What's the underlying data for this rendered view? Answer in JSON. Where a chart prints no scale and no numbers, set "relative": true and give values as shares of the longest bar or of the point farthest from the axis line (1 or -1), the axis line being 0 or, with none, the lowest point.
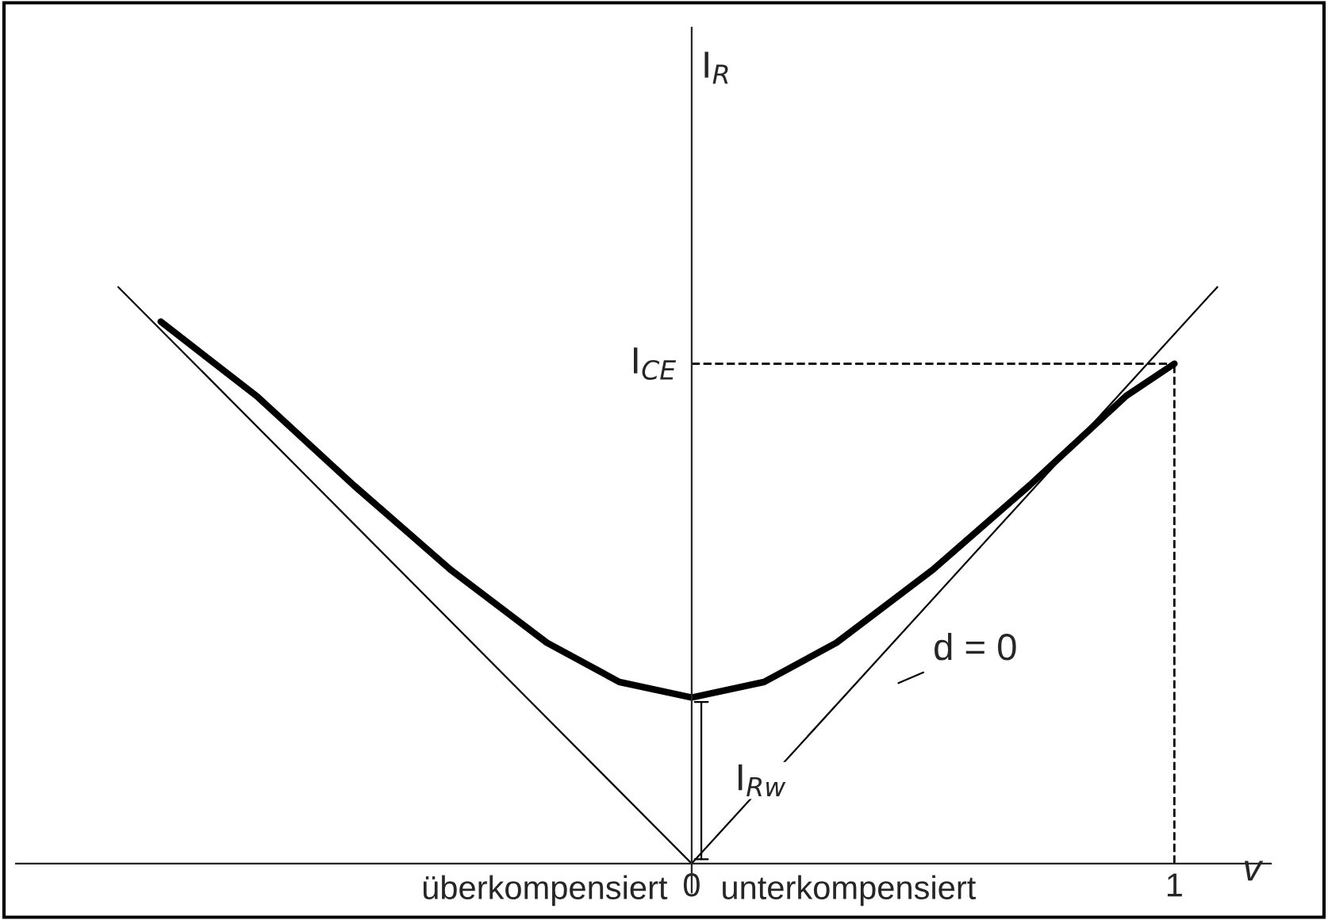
{
  "chart_data": {
    "type": "line",
    "relative": true,
    "xlabel": "v",
    "xlim": [
      -1.4,
      1.2
    ],
    "xticks": [
      0,
      1
    ],
    "grid": false,
    "legend": false,
    "series": [
      {
        "color": "#000000",
        "x": [
          -1.1,
          -0.9,
          -0.7,
          -0.5,
          -0.3,
          -0.15,
          0,
          0.15,
          0.3,
          0.5,
          0.7,
          0.9,
          1.0
        ],
        "values": [
          0.94,
          0.81,
          0.656,
          0.51,
          0.383,
          0.315,
          0.288,
          0.315,
          0.383,
          0.51,
          0.656,
          0.811,
          0.867
        ]
      },
      {
        "color": "#000000",
        "x": [
          -1.188,
          0,
          1.089
        ],
        "values": [
          1,
          0,
          1
        ]
      }
    ],
    "ref_lines": [
      {
        "axis": "y",
        "value": 0.867,
        "label": "I$_{CE}$",
        "line_style": "dashed"
      },
      {
        "axis": "x",
        "value": 1,
        "label": null,
        "line_style": "dashed"
      }
    ],
    "annotations": [
      "I$_{R}$",
      "überkompensiert",
      "unterkompensiert",
      "d = 0",
      {
        "text": "I$_{Rw}$",
        "x": 0,
        "y": 0.288
      }
    ]
  }
}
